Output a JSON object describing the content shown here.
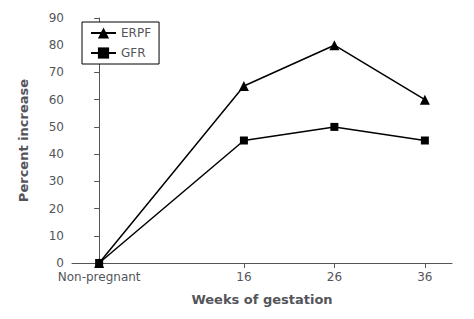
{
  "chart_data": {
    "type": "line",
    "x": [
      0,
      16,
      26,
      36
    ],
    "series": [
      {
        "name": "ERPF",
        "color": "#000000",
        "marker": "triangle",
        "values": [
          0,
          65,
          80,
          60
        ]
      },
      {
        "name": "GFR",
        "color": "#000000",
        "marker": "square",
        "values": [
          0,
          45,
          50,
          45
        ]
      }
    ],
    "xlabel": "Weeks of gestation",
    "ylabel": "Percent increase",
    "xlim": [
      -3,
      39
    ],
    "xticks": [
      {
        "value": 0,
        "label": "Non-pregnant"
      },
      16,
      26,
      36
    ],
    "ylim": [
      0,
      90
    ],
    "yticks": [
      0,
      10,
      20,
      30,
      40,
      50,
      60,
      70,
      80,
      90
    ],
    "grid": false,
    "legend": "upper left"
  }
}
